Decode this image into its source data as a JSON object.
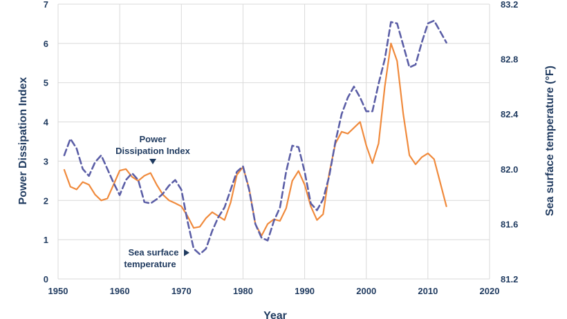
{
  "chart_data": {
    "type": "line",
    "xlabel": "Year",
    "ylabel_left": "Power Dissipation Index",
    "ylabel_right": "Sea surface temperature (°F)",
    "xlim": [
      1950,
      2020
    ],
    "ylim_left": [
      0,
      7
    ],
    "ylim_right": [
      81.2,
      83.2
    ],
    "x_ticks": [
      "1950",
      "1960",
      "1970",
      "1980",
      "1990",
      "2000",
      "2010",
      "2020"
    ],
    "y_left_ticks": [
      "0",
      "1",
      "2",
      "3",
      "4",
      "5",
      "6",
      "7"
    ],
    "y_right_ticks": [
      "81.2",
      "81.6",
      "82.0",
      "82.4",
      "82.8",
      "83.2"
    ],
    "grid": true,
    "colors": {
      "pdi": "#f08a3c",
      "sst": "#5b5ea6",
      "text": "#1f3a5f"
    },
    "series": [
      {
        "name": "Power Dissipation Index",
        "axis": "left",
        "style": "solid",
        "x": [
          1951,
          1952,
          1953,
          1954,
          1955,
          1956,
          1957,
          1958,
          1959,
          1960,
          1961,
          1962,
          1963,
          1964,
          1965,
          1966,
          1967,
          1968,
          1969,
          1970,
          1971,
          1972,
          1973,
          1974,
          1975,
          1976,
          1977,
          1978,
          1979,
          1980,
          1981,
          1982,
          1983,
          1984,
          1985,
          1986,
          1987,
          1988,
          1989,
          1990,
          1991,
          1992,
          1993,
          1994,
          1995,
          1996,
          1997,
          1998,
          1999,
          2000,
          2001,
          2002,
          2003,
          2004,
          2005,
          2006,
          2007,
          2008,
          2009,
          2010,
          2011,
          2012,
          2013
        ],
        "values": [
          2.78,
          2.35,
          2.28,
          2.47,
          2.4,
          2.15,
          2.0,
          2.05,
          2.4,
          2.76,
          2.8,
          2.6,
          2.5,
          2.63,
          2.7,
          2.4,
          2.15,
          2.0,
          1.93,
          1.85,
          1.6,
          1.3,
          1.33,
          1.55,
          1.7,
          1.6,
          1.5,
          1.95,
          2.65,
          2.85,
          2.3,
          1.4,
          1.1,
          1.4,
          1.52,
          1.48,
          1.8,
          2.5,
          2.75,
          2.4,
          1.85,
          1.5,
          1.65,
          2.7,
          3.45,
          3.75,
          3.7,
          3.85,
          4.0,
          3.4,
          2.95,
          3.45,
          4.9,
          6.0,
          5.55,
          4.2,
          3.15,
          2.92,
          3.1,
          3.2,
          3.05,
          2.45,
          1.85
        ]
      },
      {
        "name": "Sea surface temperature",
        "axis": "right",
        "style": "dashed",
        "x": [
          1951,
          1952,
          1953,
          1954,
          1955,
          1956,
          1957,
          1958,
          1959,
          1960,
          1961,
          1962,
          1963,
          1964,
          1965,
          1966,
          1967,
          1968,
          1969,
          1970,
          1971,
          1972,
          1973,
          1974,
          1975,
          1976,
          1977,
          1978,
          1979,
          1980,
          1981,
          1982,
          1983,
          1984,
          1985,
          1986,
          1987,
          1988,
          1989,
          1990,
          1991,
          1992,
          1993,
          1994,
          1995,
          1996,
          1997,
          1998,
          1999,
          2000,
          2001,
          2002,
          2003,
          2004,
          2005,
          2006,
          2007,
          2008,
          2009,
          2010,
          2011,
          2012,
          2013
        ],
        "values": [
          82.1,
          82.22,
          82.15,
          82.0,
          81.95,
          82.05,
          82.1,
          82.0,
          81.9,
          81.81,
          81.92,
          81.97,
          81.92,
          81.76,
          81.75,
          81.78,
          81.82,
          81.88,
          81.92,
          81.85,
          81.62,
          81.42,
          81.38,
          81.42,
          81.55,
          81.65,
          81.72,
          81.85,
          81.98,
          82.02,
          81.85,
          81.6,
          81.5,
          81.48,
          81.62,
          81.72,
          81.98,
          82.17,
          82.16,
          81.98,
          81.75,
          81.7,
          81.78,
          81.95,
          82.2,
          82.4,
          82.52,
          82.6,
          82.52,
          82.42,
          82.42,
          82.62,
          82.8,
          83.07,
          83.06,
          82.9,
          82.74,
          82.76,
          82.92,
          83.06,
          83.08,
          83.0,
          82.92
        ]
      }
    ],
    "annotations": [
      {
        "lines": [
          "Power",
          "Dissipation Index"
        ],
        "target": "Power Dissipation Index"
      },
      {
        "lines": [
          "Sea surface",
          "temperature"
        ],
        "target": "Sea surface temperature"
      }
    ]
  }
}
